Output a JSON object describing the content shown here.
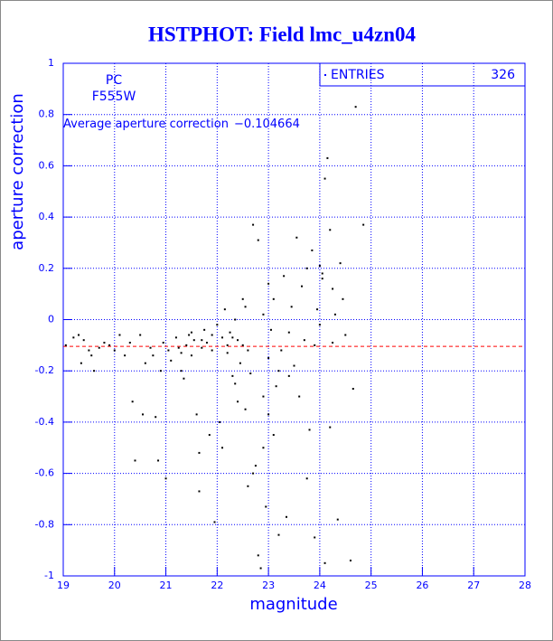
{
  "chart_data": {
    "type": "scatter",
    "title": "HSTPHOT: Field lmc_u4zn04",
    "xlabel": "magnitude",
    "ylabel": "aperture correction",
    "labels": [
      "PC",
      "F555W"
    ],
    "annotation": {
      "text": "Average aperture correction",
      "value": -0.104664,
      "value_label": "−0.104664",
      "color": "#ff0000"
    },
    "stats": {
      "name": "ENTRIES",
      "value": 326
    },
    "color": "#000000",
    "axis_color": "#0000ff",
    "grid": true,
    "xlim": [
      19,
      28
    ],
    "xticks": [
      19,
      20,
      21,
      22,
      23,
      24,
      25,
      26,
      27,
      28
    ],
    "ylim": [
      -1,
      1
    ],
    "yticks": [
      -1,
      -0.8,
      -0.6,
      -0.4,
      -0.2,
      0,
      0.2,
      0.4,
      0.6,
      0.8,
      1
    ],
    "x": [
      19.05,
      19.2,
      19.3,
      19.4,
      19.35,
      19.5,
      19.55,
      19.6,
      19.7,
      19.8,
      19.9,
      20.1,
      20.0,
      20.2,
      20.3,
      20.35,
      20.4,
      20.5,
      20.55,
      20.6,
      20.7,
      20.75,
      20.8,
      20.85,
      20.9,
      20.95,
      21.0,
      21.05,
      21.1,
      21.2,
      21.25,
      21.3,
      21.35,
      21.4,
      21.45,
      21.5,
      21.55,
      21.6,
      21.65,
      21.65,
      21.7,
      21.75,
      21.8,
      21.85,
      21.9,
      21.95,
      22.0,
      22.05,
      22.1,
      22.1,
      22.15,
      22.2,
      22.25,
      22.3,
      22.35,
      22.4,
      22.45,
      22.5,
      22.5,
      22.55,
      22.6,
      22.65,
      22.7,
      22.7,
      22.75,
      22.8,
      22.8,
      22.85,
      22.9,
      22.9,
      22.95,
      23.0,
      23.0,
      23.05,
      23.1,
      23.15,
      23.2,
      23.25,
      23.3,
      23.35,
      23.4,
      23.45,
      23.5,
      23.55,
      23.6,
      23.65,
      23.7,
      23.75,
      23.8,
      23.85,
      23.9,
      23.95,
      24.0,
      24.05,
      24.1,
      24.1,
      24.15,
      24.2,
      24.25,
      24.3,
      24.35,
      24.4,
      24.45,
      24.5,
      24.6,
      24.65,
      24.7,
      24.85,
      22.4,
      22.3,
      22.2,
      22.6,
      23.0,
      23.2,
      23.4,
      22.9,
      23.1,
      22.55,
      22.35,
      21.9,
      21.7,
      21.5,
      21.3,
      24.0,
      24.25,
      23.9,
      23.75,
      24.2,
      24.05
    ],
    "values": [
      -0.1,
      -0.07,
      -0.06,
      -0.08,
      -0.17,
      -0.12,
      -0.14,
      -0.2,
      -0.11,
      -0.09,
      -0.1,
      -0.06,
      -0.12,
      -0.14,
      -0.09,
      -0.32,
      -0.55,
      -0.06,
      -0.37,
      -0.17,
      -0.11,
      -0.14,
      -0.38,
      -0.55,
      -0.2,
      -0.09,
      -0.62,
      -0.12,
      -0.16,
      -0.07,
      -0.11,
      -0.13,
      -0.23,
      -0.1,
      -0.06,
      -0.14,
      -0.08,
      -0.37,
      -0.67,
      -0.52,
      -0.11,
      -0.04,
      -0.09,
      -0.45,
      -0.06,
      -0.79,
      -0.02,
      -0.4,
      -0.5,
      -0.07,
      0.04,
      -0.13,
      -0.05,
      -0.22,
      0.0,
      -0.32,
      -0.17,
      -0.1,
      0.08,
      -0.35,
      -0.65,
      -0.21,
      0.37,
      -0.6,
      -0.57,
      -0.92,
      0.31,
      -0.97,
      -0.3,
      0.02,
      -0.73,
      -0.37,
      0.14,
      -0.04,
      0.08,
      -0.26,
      -0.84,
      -0.12,
      0.17,
      -0.77,
      -0.05,
      0.05,
      -0.18,
      0.32,
      -0.3,
      0.13,
      -0.08,
      0.2,
      -0.43,
      0.27,
      -0.1,
      0.04,
      0.21,
      0.18,
      0.55,
      -0.95,
      0.63,
      -0.42,
      0.12,
      0.02,
      -0.78,
      0.22,
      0.08,
      -0.06,
      -0.94,
      -0.27,
      0.83,
      0.37,
      -0.08,
      -0.07,
      -0.1,
      -0.12,
      -0.15,
      -0.2,
      -0.22,
      -0.5,
      -0.45,
      0.05,
      -0.25,
      -0.12,
      -0.08,
      -0.05,
      -0.2,
      -0.02,
      -0.09,
      -0.85,
      -0.62,
      0.35,
      0.16
    ]
  }
}
